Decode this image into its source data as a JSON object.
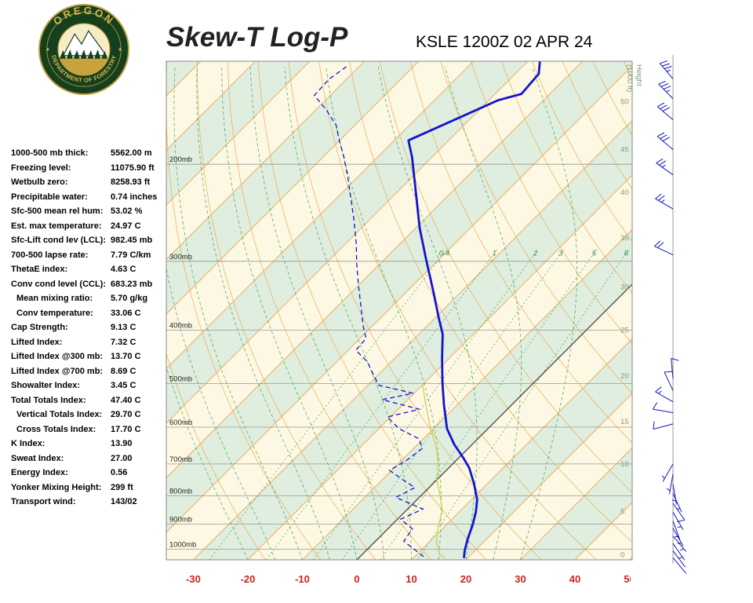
{
  "header": {
    "title": "Skew-T Log-P",
    "station": "KSLE 1200Z 02 APR 24"
  },
  "logo": {
    "top_text": "OREGON",
    "bottom_text": "DEPARTMENT OF FORESTRY"
  },
  "indices": [
    {
      "label": "1000-500 mb thick:",
      "value": "5562.00 m",
      "indent": 0
    },
    {
      "label": "Freezing level:",
      "value": "11075.90 ft",
      "indent": 0
    },
    {
      "label": "Wetbulb zero:",
      "value": "8258.93 ft",
      "indent": 0
    },
    {
      "label": "Precipitable water:",
      "value": "0.74 inches",
      "indent": 0
    },
    {
      "label": "Sfc-500 mean rel hum:",
      "value": "53.02 %",
      "indent": 0
    },
    {
      "label": "Est. max temperature:",
      "value": "24.97 C",
      "indent": 0
    },
    {
      "label": "Sfc-Lift cond lev (LCL):",
      "value": "982.45 mb",
      "indent": 0
    },
    {
      "label": "700-500 lapse rate:",
      "value": "7.79 C/km",
      "indent": 0
    },
    {
      "label": "ThetaE index:",
      "value": "4.63 C",
      "indent": 0
    },
    {
      "label": "Conv cond level (CCL):",
      "value": "683.23 mb",
      "indent": 0
    },
    {
      "label": "Mean mixing ratio:",
      "value": "5.70 g/kg",
      "indent": 1
    },
    {
      "label": "Conv temperature:",
      "value": "33.06 C",
      "indent": 1
    },
    {
      "label": "Cap Strength:",
      "value": "9.13 C",
      "indent": 0
    },
    {
      "label": "Lifted Index:",
      "value": "7.32 C",
      "indent": 0
    },
    {
      "label": "Lifted Index @300 mb:",
      "value": "13.70 C",
      "indent": 0
    },
    {
      "label": "Lifted Index @700 mb:",
      "value": "8.69 C",
      "indent": 0
    },
    {
      "label": "Showalter Index:",
      "value": "3.45 C",
      "indent": 0
    },
    {
      "label": "Total Totals Index:",
      "value": "47.40 C",
      "indent": 0
    },
    {
      "label": "Vertical Totals Index:",
      "value": "29.70 C",
      "indent": 1
    },
    {
      "label": "Cross Totals Index:",
      "value": "17.70 C",
      "indent": 1
    },
    {
      "label": "K Index:",
      "value": "13.90",
      "indent": 0
    },
    {
      "label": "Sweat Index:",
      "value": "27.00",
      "indent": 0
    },
    {
      "label": "Energy Index:",
      "value": "0.56",
      "indent": 0
    },
    {
      "label": "Yonker Mixing Height:",
      "value": "299 ft",
      "indent": 0
    },
    {
      "label": "Transport wind:",
      "value": "143/02",
      "indent": 0
    }
  ],
  "chart_data": {
    "type": "skewt_log_p",
    "title": "Skew-T Log-P",
    "station": "KSLE 1200Z 02 APR 24",
    "pressure_axis": {
      "unit": "mb",
      "gridlines": [
        200,
        300,
        400,
        500,
        600,
        700,
        800,
        900,
        1000
      ],
      "labels": [
        "200mb",
        "300mb",
        "400mb",
        "500mb",
        "600mb",
        "700mb",
        "800mb",
        "900mb",
        "1000mb"
      ],
      "range": [
        130,
        1045
      ]
    },
    "temp_axis": {
      "unit": "C",
      "ticks": [
        -30,
        -20,
        -10,
        0,
        10,
        20,
        30,
        40,
        50
      ],
      "labels": [
        "-30",
        "-20",
        "-10",
        "0",
        "10",
        "20",
        "30",
        "40",
        "50"
      ]
    },
    "height_axis": {
      "title": "Height (1000 ft)",
      "ticks": [
        {
          "label": "50",
          "p": 154
        },
        {
          "label": "45",
          "p": 188
        },
        {
          "label": "40",
          "p": 225
        },
        {
          "label": "35",
          "p": 272
        },
        {
          "label": "30",
          "p": 334
        },
        {
          "label": "25",
          "p": 400
        },
        {
          "label": "20",
          "p": 485
        },
        {
          "label": "15",
          "p": 586
        },
        {
          "label": "10",
          "p": 700
        },
        {
          "label": "5",
          "p": 854
        },
        {
          "label": "0",
          "p": 1023
        }
      ]
    },
    "isotherms": {
      "min": -150,
      "max": 50,
      "step": 10,
      "highlight": 0
    },
    "dry_adiabats": {
      "min": -20,
      "max": 140,
      "step": 10
    },
    "moist_adiabats": {
      "min": -20,
      "max": 30,
      "step": 5
    },
    "mixing_ratio": {
      "values": [
        0.4,
        1,
        2,
        3,
        5,
        8
      ],
      "label_pressure": 290
    },
    "sounding": {
      "temperature": [
        [
          130,
          -57.8
        ],
        [
          137,
          -55.7
        ],
        [
          149,
          -55.2
        ],
        [
          153,
          -58.3
        ],
        [
          181,
          -67.4
        ],
        [
          194,
          -63.7
        ],
        [
          225,
          -56.5
        ],
        [
          261,
          -49.3
        ],
        [
          298,
          -42.3
        ],
        [
          340,
          -35.2
        ],
        [
          381,
          -29.2
        ],
        [
          407,
          -25.6
        ],
        [
          449,
          -21.4
        ],
        [
          499,
          -16.7
        ],
        [
          547,
          -12.4
        ],
        [
          604,
          -7.5
        ],
        [
          645,
          -3.3
        ],
        [
          682,
          0.8
        ],
        [
          712,
          3.8
        ],
        [
          761,
          7.6
        ],
        [
          812,
          11.0
        ],
        [
          854,
          13.0
        ],
        [
          905,
          14.9
        ],
        [
          958,
          16.5
        ],
        [
          1006,
          18.1
        ],
        [
          1037,
          19.3
        ]
      ],
      "dewpoint": [
        [
          133,
          -92.3
        ],
        [
          140,
          -93.2
        ],
        [
          150,
          -92.9
        ],
        [
          159,
          -88.2
        ],
        [
          170,
          -83.4
        ],
        [
          181,
          -80.1
        ],
        [
          194,
          -76.2
        ],
        [
          211,
          -71.8
        ],
        [
          229,
          -67.7
        ],
        [
          253,
          -62.7
        ],
        [
          279,
          -58.0
        ],
        [
          303,
          -54.3
        ],
        [
          329,
          -50.4
        ],
        [
          363,
          -45.6
        ],
        [
          394,
          -41.6
        ],
        [
          414,
          -38.9
        ],
        [
          435,
          -38.6
        ],
        [
          457,
          -34.3
        ],
        [
          485,
          -30.5
        ],
        [
          504,
          -27.9
        ],
        [
          521,
          -20.2
        ],
        [
          535,
          -24.7
        ],
        [
          557,
          -16.1
        ],
        [
          575,
          -20.6
        ],
        [
          604,
          -16.3
        ],
        [
          630,
          -10.8
        ],
        [
          656,
          -8.4
        ],
        [
          689,
          -9.1
        ],
        [
          719,
          -10.4
        ],
        [
          748,
          -6.2
        ],
        [
          773,
          -2.6
        ],
        [
          805,
          -4.3
        ],
        [
          845,
          2.8
        ],
        [
          882,
          0.6
        ],
        [
          918,
          4.5
        ],
        [
          967,
          5.2
        ],
        [
          1006,
          9.2
        ],
        [
          1040,
          12.5
        ]
      ],
      "wetbulb": [
        [
          504,
          -19.9
        ],
        [
          557,
          -14.8
        ],
        [
          604,
          -10.5
        ],
        [
          656,
          -5.8
        ],
        [
          701,
          -2.6
        ],
        [
          748,
          0.0
        ],
        [
          799,
          3.5
        ],
        [
          854,
          6.8
        ],
        [
          912,
          8.9
        ],
        [
          974,
          11.5
        ],
        [
          1023,
          14.3
        ],
        [
          1037,
          15.8
        ]
      ]
    },
    "wind_barbs": [
      {
        "p": 140,
        "dir": 320,
        "spd": 35
      },
      {
        "p": 152,
        "dir": 315,
        "spd": 35
      },
      {
        "p": 166,
        "dir": 310,
        "spd": 30
      },
      {
        "p": 188,
        "dir": 310,
        "spd": 30
      },
      {
        "p": 209,
        "dir": 305,
        "spd": 25
      },
      {
        "p": 241,
        "dir": 300,
        "spd": 25
      },
      {
        "p": 292,
        "dir": 295,
        "spd": 20
      },
      {
        "p": 490,
        "dir": 355,
        "spd": 10
      },
      {
        "p": 515,
        "dir": 335,
        "spd": 10
      },
      {
        "p": 540,
        "dir": 300,
        "spd": 15
      },
      {
        "p": 565,
        "dir": 280,
        "spd": 10
      },
      {
        "p": 592,
        "dir": 255,
        "spd": 10
      },
      {
        "p": 700,
        "dir": 210,
        "spd": 5
      },
      {
        "p": 730,
        "dir": 190,
        "spd": 5
      },
      {
        "p": 762,
        "dir": 170,
        "spd": 5
      },
      {
        "p": 792,
        "dir": 155,
        "spd": 5
      },
      {
        "p": 825,
        "dir": 145,
        "spd": 10
      },
      {
        "p": 856,
        "dir": 150,
        "spd": 5
      },
      {
        "p": 888,
        "dir": 160,
        "spd": 5
      },
      {
        "p": 916,
        "dir": 150,
        "spd": 5
      },
      {
        "p": 946,
        "dir": 140,
        "spd": 5
      },
      {
        "p": 976,
        "dir": 145,
        "spd": 3
      },
      {
        "p": 1006,
        "dir": 143,
        "spd": 2
      },
      {
        "p": 1036,
        "dir": 140,
        "spd": 2
      }
    ],
    "colors": {
      "cream": "#FDF8E3",
      "band_green": "#DFEEDE",
      "isotherm": "#E8A04A",
      "adiabat": "#EBAB55",
      "moist": "#3FA055",
      "grid": "#999999",
      "temp_trace": "#1414CC",
      "dewpoint_trace": "#1414CC",
      "wetbulb_trace": "#CFCF4A",
      "axis_red": "#CC2222",
      "height_label": "#7A9E7A",
      "pressure_label": "#222222",
      "zero_isotherm": "#444444",
      "barb": "#1414BB",
      "border": "#888888"
    }
  }
}
